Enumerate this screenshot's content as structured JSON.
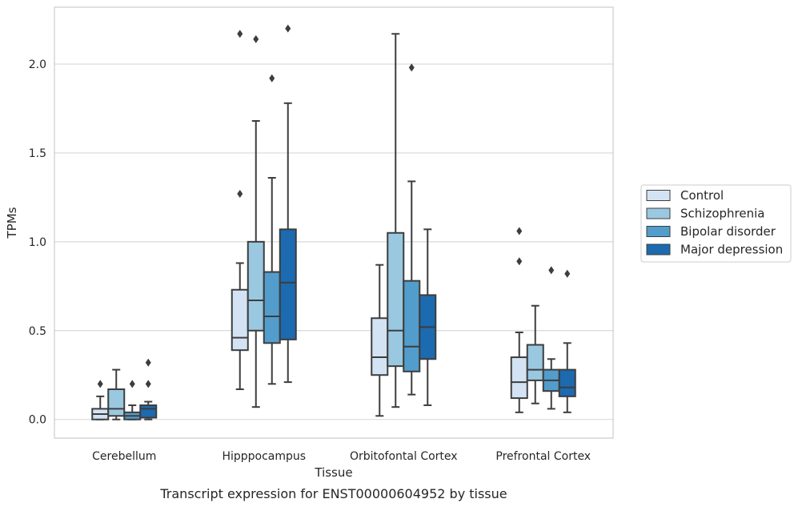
{
  "chart_data": {
    "type": "boxplot",
    "caption": "Transcript expression for ENST00000604952 by tissue",
    "xlabel": "Tissue",
    "ylabel": "TPMs",
    "ylim": [
      -0.105,
      2.32
    ],
    "yticks": [
      0.0,
      0.5,
      1.0,
      1.5,
      2.0
    ],
    "ytick_labels": [
      "0.0",
      "0.5",
      "1.0",
      "1.5",
      "2.0"
    ],
    "grid": "horizontal",
    "legend_position": "right",
    "categories": [
      "Cerebellum",
      "Hipppocampus",
      "Orbitofontal Cortex",
      "Prefrontal Cortex"
    ],
    "series": [
      {
        "name": "Control",
        "color": "#d3e3f3",
        "boxes": [
          {
            "whisker_low": 0.0,
            "q1": 0.0,
            "median": 0.03,
            "q3": 0.06,
            "whisker_high": 0.13,
            "outliers": [
              0.2
            ]
          },
          {
            "whisker_low": 0.17,
            "q1": 0.39,
            "median": 0.46,
            "q3": 0.73,
            "whisker_high": 0.88,
            "outliers": [
              1.27,
              2.17
            ]
          },
          {
            "whisker_low": 0.02,
            "q1": 0.25,
            "median": 0.35,
            "q3": 0.57,
            "whisker_high": 0.87,
            "outliers": []
          },
          {
            "whisker_low": 0.04,
            "q1": 0.12,
            "median": 0.21,
            "q3": 0.35,
            "whisker_high": 0.49,
            "outliers": [
              0.89,
              1.06
            ]
          }
        ]
      },
      {
        "name": "Schizophrenia",
        "color": "#9ac8e0",
        "boxes": [
          {
            "whisker_low": 0.0,
            "q1": 0.02,
            "median": 0.06,
            "q3": 0.17,
            "whisker_high": 0.28,
            "outliers": []
          },
          {
            "whisker_low": 0.07,
            "q1": 0.5,
            "median": 0.67,
            "q3": 1.0,
            "whisker_high": 1.68,
            "outliers": [
              2.14
            ]
          },
          {
            "whisker_low": 0.07,
            "q1": 0.3,
            "median": 0.5,
            "q3": 1.05,
            "whisker_high": 2.17,
            "outliers": []
          },
          {
            "whisker_low": 0.09,
            "q1": 0.22,
            "median": 0.28,
            "q3": 0.42,
            "whisker_high": 0.64,
            "outliers": []
          }
        ]
      },
      {
        "name": "Bipolar disorder",
        "color": "#529dcc",
        "boxes": [
          {
            "whisker_low": 0.0,
            "q1": 0.0,
            "median": 0.02,
            "q3": 0.04,
            "whisker_high": 0.08,
            "outliers": [
              0.2
            ]
          },
          {
            "whisker_low": 0.2,
            "q1": 0.43,
            "median": 0.58,
            "q3": 0.83,
            "whisker_high": 1.36,
            "outliers": [
              1.92
            ]
          },
          {
            "whisker_low": 0.14,
            "q1": 0.27,
            "median": 0.41,
            "q3": 0.78,
            "whisker_high": 1.34,
            "outliers": [
              1.98
            ]
          },
          {
            "whisker_low": 0.06,
            "q1": 0.16,
            "median": 0.22,
            "q3": 0.28,
            "whisker_high": 0.34,
            "outliers": [
              0.84
            ]
          }
        ]
      },
      {
        "name": "Major depression",
        "color": "#1c6aaf",
        "boxes": [
          {
            "whisker_low": 0.0,
            "q1": 0.01,
            "median": 0.06,
            "q3": 0.08,
            "whisker_high": 0.1,
            "outliers": [
              0.2,
              0.32
            ]
          },
          {
            "whisker_low": 0.21,
            "q1": 0.45,
            "median": 0.77,
            "q3": 1.07,
            "whisker_high": 1.78,
            "outliers": [
              2.2
            ]
          },
          {
            "whisker_low": 0.08,
            "q1": 0.34,
            "median": 0.52,
            "q3": 0.7,
            "whisker_high": 1.07,
            "outliers": []
          },
          {
            "whisker_low": 0.04,
            "q1": 0.13,
            "median": 0.18,
            "q3": 0.28,
            "whisker_high": 0.43,
            "outliers": [
              0.82
            ]
          }
        ]
      }
    ]
  }
}
